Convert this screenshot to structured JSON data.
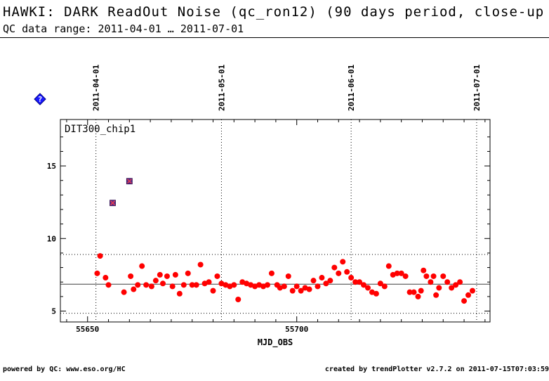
{
  "header": {
    "title": "HAWKI: DARK ReadOut Noise (qc_ron12) (90 days period, close-up",
    "subtitle": "QC data range: 2011-04-01 … 2011-07-01"
  },
  "footer": {
    "left": "powered by QC: www.eso.org/HC",
    "right": "created by trendPlotter v2.7.2 on 2011-07-15T07:03:59"
  },
  "chart_data": {
    "type": "scatter",
    "panel_label": "DIT300_chip1",
    "xlabel": "MJD_OBS",
    "ylabel": "",
    "xlim": [
      55643.5,
      55746.2
    ],
    "ylim": [
      4.25,
      18.2
    ],
    "x_ticks": [
      55650,
      55700
    ],
    "y_ticks": [
      5,
      10,
      15
    ],
    "date_markers": [
      {
        "label": "2011-04-01",
        "x": 55652
      },
      {
        "label": "2011-05-01",
        "x": 55682
      },
      {
        "label": "2011-06-01",
        "x": 55713
      },
      {
        "label": "2011-07-01",
        "x": 55743
      }
    ],
    "mean_line": 6.85,
    "limit_lines": [
      8.9,
      4.85
    ],
    "colors": {
      "points": "#ff0000",
      "outliers": "#5a2a8c",
      "info_icon": "#1a1aff"
    },
    "info_icon": "info-icon",
    "grid": false,
    "outliers": [
      {
        "x": 55656.0,
        "y": 12.45
      },
      {
        "x": 55660.0,
        "y": 13.95
      }
    ],
    "series": [
      {
        "points": [
          [
            55652.3,
            7.6
          ],
          [
            55653.0,
            8.8
          ],
          [
            55654.3,
            7.3
          ],
          [
            55655.0,
            6.8
          ],
          [
            55658.7,
            6.3
          ],
          [
            55660.3,
            7.4
          ],
          [
            55661.0,
            6.5
          ],
          [
            55662.0,
            6.8
          ],
          [
            55663.0,
            8.1
          ],
          [
            55664.0,
            6.8
          ],
          [
            55665.3,
            6.7
          ],
          [
            55666.3,
            7.1
          ],
          [
            55667.3,
            7.5
          ],
          [
            55668.0,
            6.9
          ],
          [
            55669.0,
            7.4
          ],
          [
            55670.3,
            6.7
          ],
          [
            55671.0,
            7.5
          ],
          [
            55672.0,
            6.2
          ],
          [
            55673.0,
            6.8
          ],
          [
            55674.0,
            7.6
          ],
          [
            55675.0,
            6.8
          ],
          [
            55676.0,
            6.8
          ],
          [
            55677.0,
            8.2
          ],
          [
            55678.0,
            6.9
          ],
          [
            55679.0,
            7.0
          ],
          [
            55680.0,
            6.4
          ],
          [
            55681.0,
            7.4
          ],
          [
            55682.0,
            6.9
          ],
          [
            55683.0,
            6.8
          ],
          [
            55684.0,
            6.7
          ],
          [
            55685.0,
            6.8
          ],
          [
            55686.0,
            5.8
          ],
          [
            55687.0,
            7.0
          ],
          [
            55688.0,
            6.9
          ],
          [
            55689.0,
            6.8
          ],
          [
            55690.0,
            6.7
          ],
          [
            55691.0,
            6.8
          ],
          [
            55692.0,
            6.7
          ],
          [
            55693.0,
            6.8
          ],
          [
            55694.0,
            7.6
          ],
          [
            55695.3,
            6.8
          ],
          [
            55696.0,
            6.6
          ],
          [
            55697.0,
            6.7
          ],
          [
            55698.0,
            7.4
          ],
          [
            55699.0,
            6.4
          ],
          [
            55700.0,
            6.7
          ],
          [
            55701.0,
            6.4
          ],
          [
            55702.0,
            6.6
          ],
          [
            55703.0,
            6.5
          ],
          [
            55704.0,
            7.1
          ],
          [
            55705.0,
            6.7
          ],
          [
            55706.0,
            7.3
          ],
          [
            55707.0,
            6.9
          ],
          [
            55708.0,
            7.1
          ],
          [
            55709.0,
            8.0
          ],
          [
            55710.0,
            7.6
          ],
          [
            55711.0,
            8.4
          ],
          [
            55712.0,
            7.7
          ],
          [
            55713.0,
            7.3
          ],
          [
            55714.0,
            7.0
          ],
          [
            55715.0,
            7.0
          ],
          [
            55716.0,
            6.8
          ],
          [
            55717.0,
            6.6
          ],
          [
            55718.0,
            6.3
          ],
          [
            55719.0,
            6.2
          ],
          [
            55720.0,
            6.9
          ],
          [
            55721.0,
            6.7
          ],
          [
            55722.0,
            8.1
          ],
          [
            55723.0,
            7.5
          ],
          [
            55724.0,
            7.6
          ],
          [
            55725.0,
            7.6
          ],
          [
            55726.0,
            7.4
          ],
          [
            55727.0,
            6.3
          ],
          [
            55728.0,
            6.3
          ],
          [
            55729.0,
            6.0
          ],
          [
            55729.7,
            6.4
          ],
          [
            55730.3,
            7.8
          ],
          [
            55731.0,
            7.4
          ],
          [
            55732.0,
            7.0
          ],
          [
            55732.7,
            7.4
          ],
          [
            55733.3,
            6.1
          ],
          [
            55734.0,
            6.6
          ],
          [
            55735.0,
            7.4
          ],
          [
            55736.0,
            7.0
          ],
          [
            55737.0,
            6.6
          ],
          [
            55738.0,
            6.8
          ],
          [
            55739.0,
            7.0
          ],
          [
            55740.0,
            5.7
          ],
          [
            55741.0,
            6.1
          ],
          [
            55742.0,
            6.4
          ]
        ]
      }
    ]
  }
}
